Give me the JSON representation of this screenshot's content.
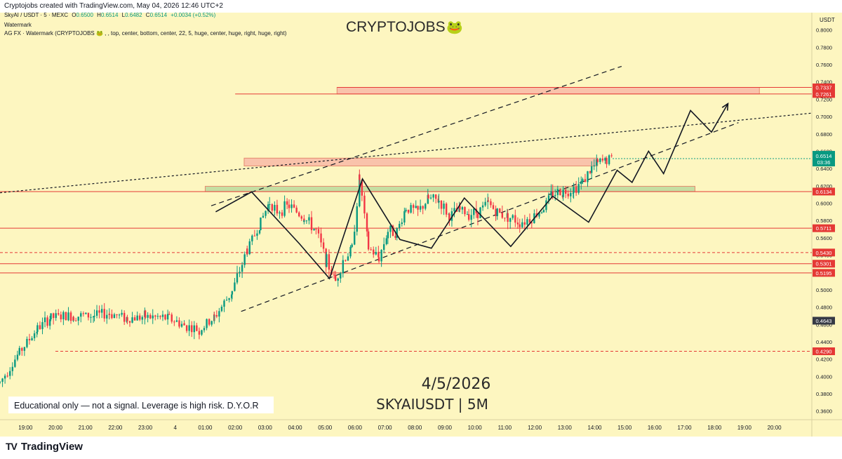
{
  "header": {
    "credit": "Cryptojobs created with TradingView.com, May 04, 2026 12:46 UTC+2"
  },
  "legend": {
    "symbol": "SkyAI / USDT · 5 · MEXC",
    "o_label": "O",
    "o_value": "0.6500",
    "h_label": "H",
    "h_value": "0.6514",
    "l_label": "L",
    "l_value": "0.6482",
    "c_label": "C",
    "c_value": "0.6514",
    "change": "+0.0034 (+0.52%)",
    "watermark_label": "Watermark",
    "indicator": "AG FX · Watermark (CRYPTOJOBS 🐸 , , top, center, bottom, center, 22, 5, huge, center, huge, right, huge, right)"
  },
  "watermark": {
    "brand": "CRYPTOJOBS",
    "emoji": "🐸"
  },
  "overlay": {
    "date": "4/5/2026",
    "pair": "SKYAIUSDT | 5M",
    "disclaimer": "Educational only — not a signal. Leverage is high risk. D.Y.O.R"
  },
  "footer": {
    "brand": "TradingView",
    "logo": "TV"
  },
  "chart_data": {
    "type": "candlestick",
    "currency_label": "USDT",
    "y_range": [
      0.35,
      0.82
    ],
    "y_ticks": [
      "0.8000",
      "0.7800",
      "0.7600",
      "0.7400",
      "0.7200",
      "0.7000",
      "0.6800",
      "0.6600",
      "0.6400",
      "0.6200",
      "0.6000",
      "0.5800",
      "0.5600",
      "0.5400",
      "0.5200",
      "0.5000",
      "0.4800",
      "0.4600",
      "0.4400",
      "0.4200",
      "0.4000",
      "0.3800",
      "0.3600"
    ],
    "x_ticks": [
      "19:00",
      "20:00",
      "21:00",
      "22:00",
      "23:00",
      "4",
      "01:00",
      "02:00",
      "03:00",
      "04:00",
      "05:00",
      "06:00",
      "07:00",
      "08:00",
      "09:00",
      "10:00",
      "11:00",
      "12:00",
      "13:00",
      "14:00",
      "15:00",
      "16:00",
      "17:00",
      "18:00",
      "19:00",
      "20:00"
    ],
    "x_range_hours": [
      18.15,
      45.25
    ],
    "current_price": "0.6514",
    "countdown": "03:36",
    "price_labels": [
      {
        "value": "0.7337",
        "price": 0.7337,
        "color": "#e53935"
      },
      {
        "value": "0.7261",
        "price": 0.7261,
        "color": "#e53935"
      },
      {
        "value": "0.6134",
        "price": 0.6134,
        "color": "#e53935"
      },
      {
        "value": "0.5711",
        "price": 0.5711,
        "color": "#e53935"
      },
      {
        "value": "0.5430",
        "price": 0.543,
        "color": "#e53935"
      },
      {
        "value": "0.5301",
        "price": 0.5301,
        "color": "#e53935"
      },
      {
        "value": "0.5195",
        "price": 0.5195,
        "color": "#e53935"
      },
      {
        "value": "0.4643",
        "price": 0.4643,
        "color": "#363a45"
      },
      {
        "value": "0.4290",
        "price": 0.429,
        "color": "#e53935"
      }
    ],
    "zones": [
      {
        "name": "resistance-zone-top",
        "price_from": 0.7261,
        "price_to": 0.7337,
        "t_from": 29.4,
        "t_to": 43.5,
        "color": "#f7b6a5"
      },
      {
        "name": "resistance-zone-mid",
        "price_from": 0.643,
        "price_to": 0.652,
        "t_from": 26.3,
        "t_to": 38.1,
        "color": "#f7b6a5"
      },
      {
        "name": "support-zone",
        "price_from": 0.6134,
        "price_to": 0.6195,
        "t_from": 25.0,
        "t_to": 41.35,
        "color": "#b6d89a"
      }
    ],
    "projection_path": [
      [
        25.35,
        0.59
      ],
      [
        26.55,
        0.613
      ],
      [
        28.15,
        0.553
      ],
      [
        29.15,
        0.513
      ],
      [
        30.25,
        0.628
      ],
      [
        31.5,
        0.558
      ],
      [
        32.55,
        0.548
      ],
      [
        33.65,
        0.606
      ],
      [
        35.2,
        0.55
      ],
      [
        36.6,
        0.608
      ],
      [
        37.8,
        0.578
      ],
      [
        38.75,
        0.638
      ],
      [
        39.25,
        0.624
      ],
      [
        39.8,
        0.66
      ],
      [
        40.3,
        0.634
      ],
      [
        41.2,
        0.707
      ],
      [
        41.9,
        0.682
      ],
      [
        42.45,
        0.715
      ]
    ],
    "channel_lines": [
      {
        "from": [
          26.2,
          0.475
        ],
        "to": [
          42.8,
          0.693
        ],
        "dash": "7,5"
      },
      {
        "from": [
          25.2,
          0.597
        ],
        "to": [
          38.9,
          0.758
        ],
        "dash": "7,5"
      },
      {
        "from": [
          18.15,
          0.612
        ],
        "to": [
          45.25,
          0.704
        ],
        "dash": "3,3"
      }
    ],
    "candle_segments": [
      [
        18.15,
        0.393
      ],
      [
        18.8,
        0.428
      ],
      [
        19.4,
        0.455
      ],
      [
        19.85,
        0.468
      ],
      [
        20.6,
        0.47
      ],
      [
        21.3,
        0.47
      ],
      [
        21.8,
        0.473
      ],
      [
        22.4,
        0.467
      ],
      [
        23.0,
        0.469
      ],
      [
        23.8,
        0.467
      ],
      [
        24.3,
        0.459
      ],
      [
        24.8,
        0.453
      ],
      [
        25.3,
        0.468
      ],
      [
        25.9,
        0.498
      ],
      [
        26.4,
        0.546
      ],
      [
        26.85,
        0.578
      ],
      [
        27.15,
        0.602
      ],
      [
        27.4,
        0.591
      ],
      [
        27.8,
        0.597
      ],
      [
        28.3,
        0.583
      ],
      [
        28.7,
        0.568
      ],
      [
        29.05,
        0.533
      ],
      [
        29.35,
        0.51
      ],
      [
        29.6,
        0.534
      ],
      [
        29.9,
        0.547
      ],
      [
        30.15,
        0.628
      ],
      [
        30.45,
        0.548
      ],
      [
        30.8,
        0.537
      ],
      [
        31.1,
        0.568
      ],
      [
        31.4,
        0.567
      ],
      [
        31.7,
        0.595
      ],
      [
        32.1,
        0.59
      ],
      [
        32.45,
        0.605
      ],
      [
        32.8,
        0.603
      ],
      [
        33.15,
        0.585
      ],
      [
        33.5,
        0.592
      ],
      [
        33.8,
        0.588
      ],
      [
        34.1,
        0.59
      ],
      [
        34.45,
        0.6
      ],
      [
        34.75,
        0.589
      ],
      [
        35.1,
        0.585
      ],
      [
        35.5,
        0.578
      ],
      [
        35.9,
        0.583
      ],
      [
        36.3,
        0.595
      ],
      [
        36.6,
        0.612
      ],
      [
        36.95,
        0.613
      ],
      [
        37.3,
        0.617
      ],
      [
        37.6,
        0.625
      ],
      [
        37.9,
        0.64
      ],
      [
        38.1,
        0.646
      ],
      [
        38.4,
        0.65
      ],
      [
        38.6,
        0.6514
      ]
    ]
  }
}
